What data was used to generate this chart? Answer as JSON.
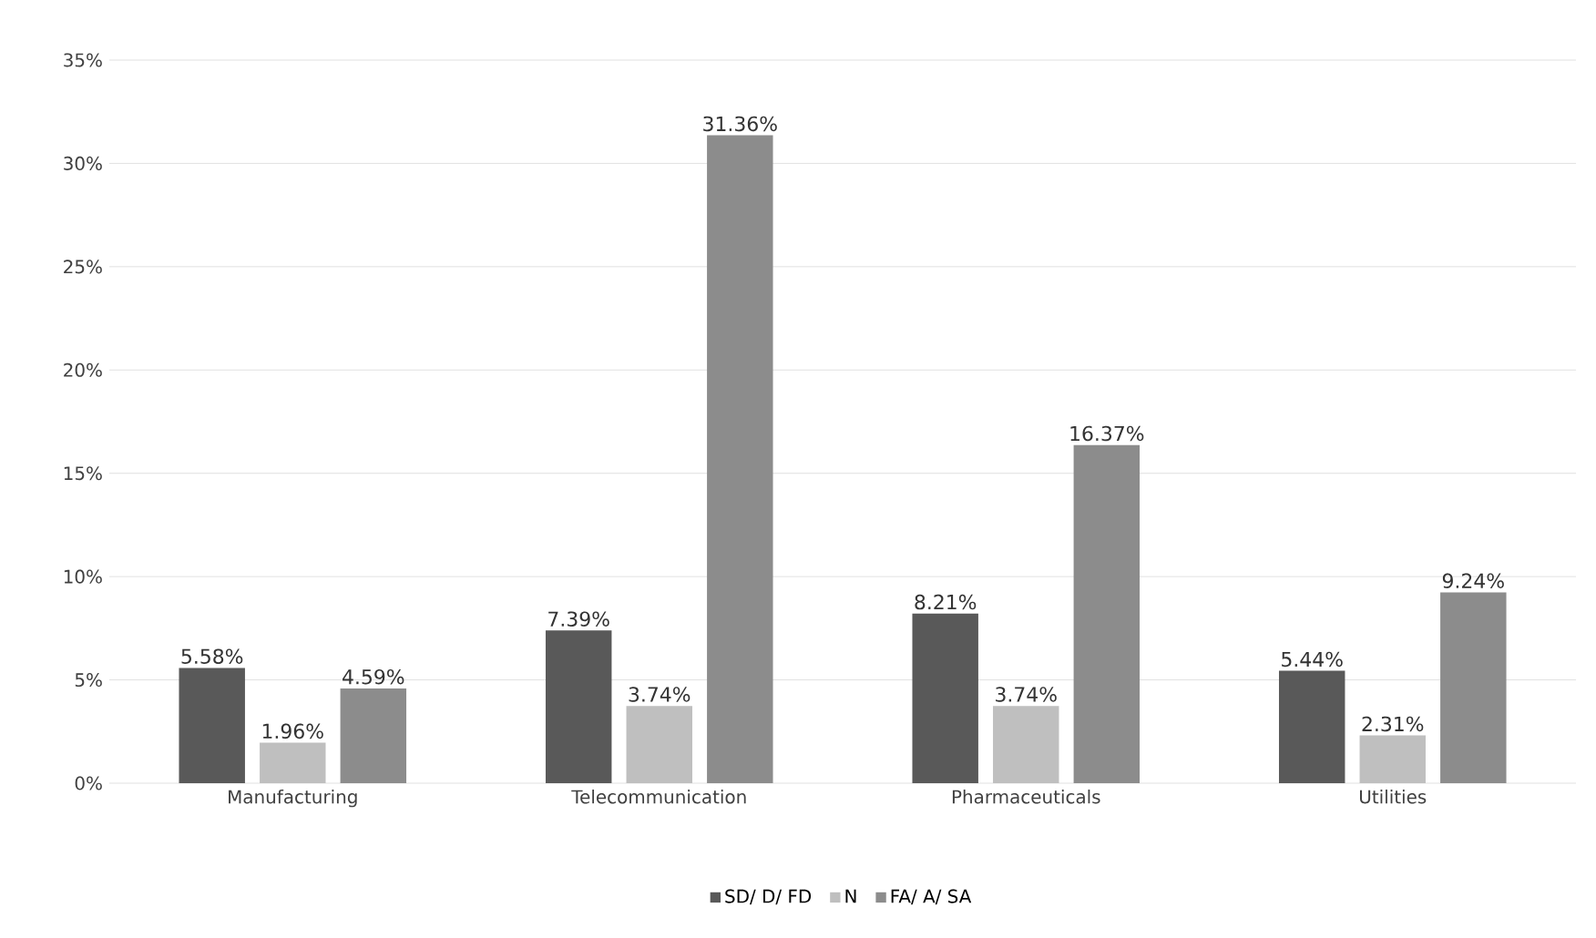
{
  "chart_data": {
    "type": "bar",
    "categories": [
      "Manufacturing",
      "Telecommunication",
      "Pharmaceuticals",
      "Utilities"
    ],
    "series": [
      {
        "name": "SD/ D/ FD",
        "color": "#595959",
        "values": [
          5.58,
          7.39,
          8.21,
          5.44
        ],
        "value_labels": [
          "5.58%",
          "7.39%",
          "8.21%",
          "5.44%"
        ]
      },
      {
        "name": "N",
        "color": "#bfbfbf",
        "values": [
          1.96,
          3.74,
          3.74,
          2.31
        ],
        "value_labels": [
          "1.96%",
          "3.74%",
          "3.74%",
          "2.31%"
        ]
      },
      {
        "name": "FA/ A/ SA",
        "color": "#8c8c8c",
        "values": [
          4.59,
          31.36,
          16.37,
          9.24
        ],
        "value_labels": [
          "4.59%",
          "31.36%",
          "16.37%",
          "9.24%"
        ]
      }
    ],
    "ylim": [
      0,
      35
    ],
    "yticks": [
      {
        "value": 0,
        "label": "0%"
      },
      {
        "value": 5,
        "label": "5%"
      },
      {
        "value": 10,
        "label": "10%"
      },
      {
        "value": 15,
        "label": "15%"
      },
      {
        "value": 20,
        "label": "20%"
      },
      {
        "value": 25,
        "label": "25%"
      },
      {
        "value": 30,
        "label": "30%"
      },
      {
        "value": 35,
        "label": "35%"
      }
    ],
    "grid": "y",
    "legend": "bottom"
  }
}
